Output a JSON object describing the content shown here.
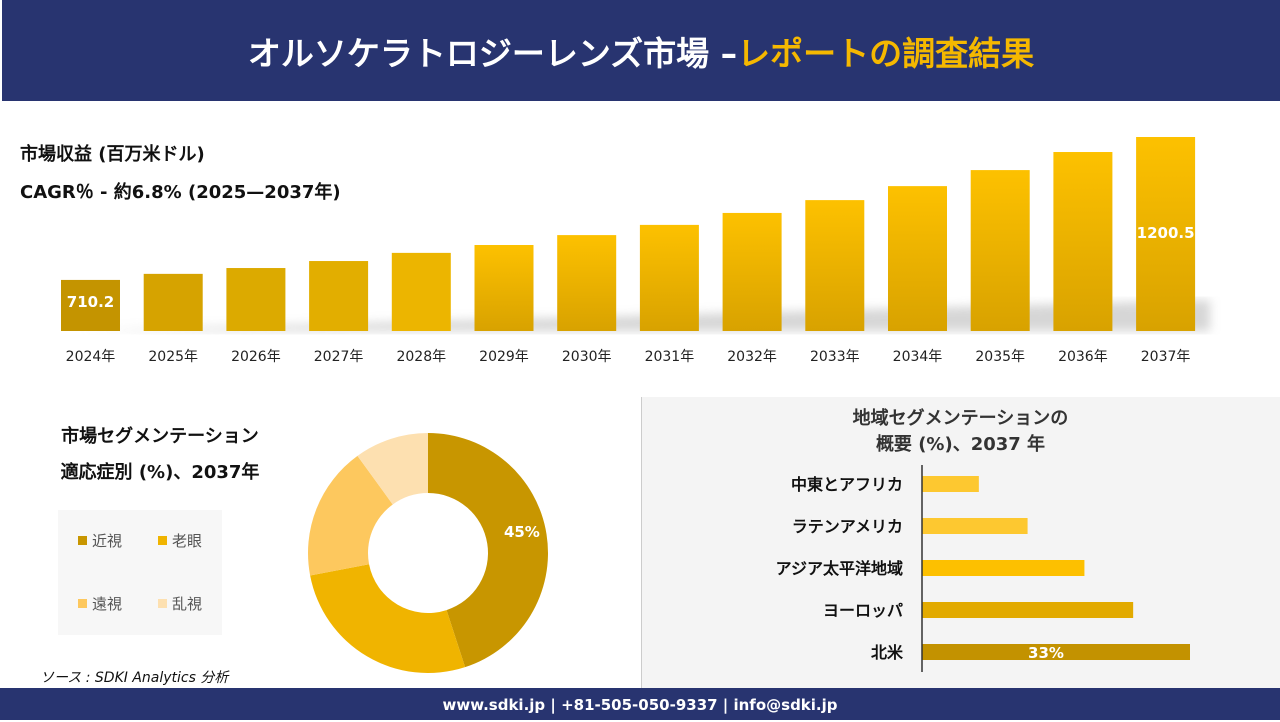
{
  "header": {
    "title_main": "オルソケラトロジーレンズ市場 –",
    "title_accent": "レポートの調査結果"
  },
  "revenue": {
    "title": "市場収益 (百万米ドル)",
    "cagr": "CAGR％ - 約6.8% (2025—2037年)"
  },
  "chart_data": [
    {
      "type": "bar",
      "categories": [
        "2024年",
        "2025年",
        "2026年",
        "2027年",
        "2028年",
        "2029年",
        "2030年",
        "2031年",
        "2032年",
        "2033年",
        "2034年",
        "2035年",
        "2036年",
        "2037年"
      ],
      "values": [
        710.2,
        731,
        751,
        775,
        803,
        830,
        864,
        899,
        940,
        984,
        1032,
        1087,
        1149,
        1200.5
      ],
      "data_labels": [
        "710.2",
        "",
        "",
        "",
        "",
        "",
        "",
        "",
        "",
        "",
        "",
        "",
        "",
        "1200.5"
      ],
      "ylim": [
        535,
        1250
      ],
      "grid": false,
      "colors": [
        "#c49400",
        "#d6a300",
        "#dcaa00",
        "#e2ae00",
        "#ecb500",
        "#fdc100",
        "#fcc000",
        "#fcc000",
        "#fcc000",
        "#fcc000",
        "#fcc000",
        "#fcc000",
        "#fcc000",
        "#fcc000"
      ]
    },
    {
      "type": "pie",
      "title": "市場セグメンテーション 適応症別 (%)、2037年",
      "categories": [
        "近視",
        "老眼",
        "遠視",
        "乱視"
      ],
      "values": [
        45,
        27,
        18,
        10
      ],
      "data_labels": [
        "45%",
        "",
        "",
        ""
      ],
      "colors": [
        "#c89600",
        "#f0b400",
        "#fdc85e",
        "#fde0b0"
      ],
      "legend": "left"
    },
    {
      "type": "bar",
      "orientation": "horizontal",
      "title": "地域セグメンテーションの 概要 (%)、2037 年",
      "categories": [
        "中東とアフリカ",
        "ラテンアメリカ",
        "アジア太平洋地域",
        "ヨーロッパ",
        "北米"
      ],
      "values": [
        7,
        13,
        20,
        26,
        33
      ],
      "data_labels": [
        "",
        "",
        "",
        "",
        "33%"
      ],
      "colors": [
        "#fdc830",
        "#fdc830",
        "#fdc000",
        "#e2aa00",
        "#c39200"
      ]
    }
  ],
  "segment": {
    "title_line1": "市場セグメンテーション",
    "title_line2": "適応症別 (%)、2037年"
  },
  "region": {
    "title_line1": "地域セグメンテーションの",
    "title_line2": "概要 (%)、2037 年"
  },
  "source": "ソース : SDKI Analytics 分析",
  "footer": "www.sdki.jp | +81-505-050-9337 | info@sdki.jp"
}
